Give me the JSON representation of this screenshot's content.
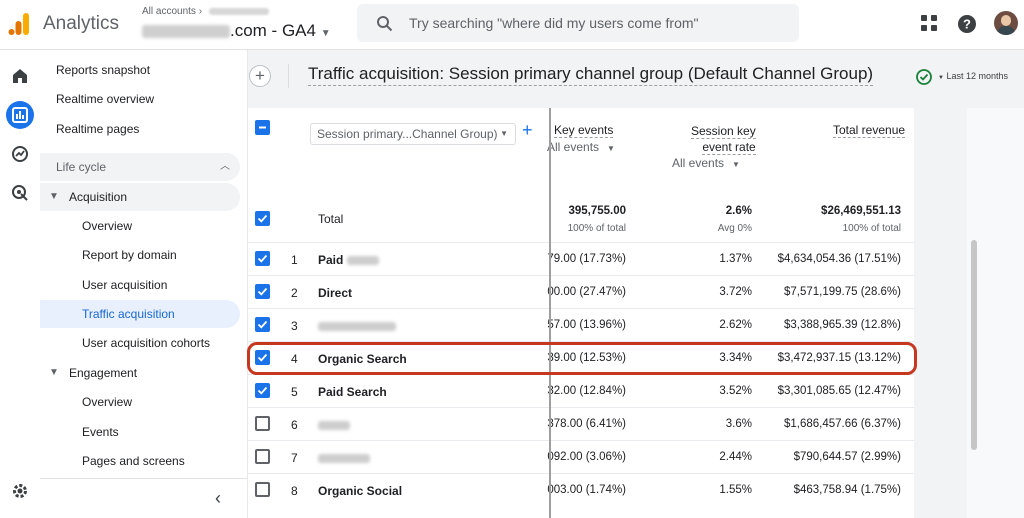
{
  "header": {
    "app_name": "Analytics",
    "breadcrumb": "All accounts",
    "account_suffix": ".com - GA4",
    "search_placeholder": "Try searching \"where did my users come from\""
  },
  "nav": {
    "items": [
      {
        "label": "Reports snapshot"
      },
      {
        "label": "Realtime overview"
      },
      {
        "label": "Realtime pages"
      },
      {
        "label": "Life cycle"
      },
      {
        "label": "Acquisition"
      },
      {
        "label": "Overview"
      },
      {
        "label": "Report by domain"
      },
      {
        "label": "User acquisition"
      },
      {
        "label": "Traffic acquisition"
      },
      {
        "label": "User acquisition cohorts"
      },
      {
        "label": "Engagement"
      },
      {
        "label": "Overview"
      },
      {
        "label": "Events"
      },
      {
        "label": "Pages and screens"
      }
    ]
  },
  "report": {
    "title": "Traffic acquisition: Session primary channel group (Default Channel Group)",
    "date_range": "Last 12 months",
    "dimension_select": "Session primary...Channel Group)",
    "columns": {
      "key_events": "Key events",
      "key_events_sub": "All events",
      "session_key_rate_1": "Session key",
      "session_key_rate_2": "event rate",
      "session_key_rate_sub": "All events",
      "total_revenue": "Total revenue"
    },
    "total": {
      "label": "Total",
      "key_events": "395,755.00",
      "key_events_sub": "100% of total",
      "rate": "2.6%",
      "rate_sub": "Avg 0%",
      "revenue": "$26,469,551.13",
      "revenue_sub": "100% of total"
    },
    "rows": [
      {
        "idx": "1",
        "channel": "Paid",
        "key_events": "79.00 (17.73%)",
        "rate": "1.37%",
        "revenue": "$4,634,054.36 (17.51%)",
        "checked": true
      },
      {
        "idx": "2",
        "channel": "Direct",
        "key_events": "00.00 (27.47%)",
        "rate": "3.72%",
        "revenue": "$7,571,199.75 (28.6%)",
        "checked": true
      },
      {
        "idx": "3",
        "channel": "",
        "key_events": "57.00 (13.96%)",
        "rate": "2.62%",
        "revenue": "$3,388,965.39 (12.8%)",
        "checked": true
      },
      {
        "idx": "4",
        "channel": "Organic Search",
        "key_events": "39.00 (12.53%)",
        "rate": "3.34%",
        "revenue": "$3,472,937.15 (13.12%)",
        "checked": true
      },
      {
        "idx": "5",
        "channel": "Paid Search",
        "key_events": "32.00 (12.84%)",
        "rate": "3.52%",
        "revenue": "$3,301,085.65 (12.47%)",
        "checked": true
      },
      {
        "idx": "6",
        "channel": "",
        "key_events": "378.00 (6.41%)",
        "rate": "3.6%",
        "revenue": "$1,686,457.66 (6.37%)",
        "checked": false
      },
      {
        "idx": "7",
        "channel": "",
        "key_events": "092.00 (3.06%)",
        "rate": "2.44%",
        "revenue": "$790,644.57 (2.99%)",
        "checked": false
      },
      {
        "idx": "8",
        "channel": "Organic Social",
        "key_events": "003.00 (1.74%)",
        "rate": "1.55%",
        "revenue": "$463,758.94 (1.75%)",
        "checked": false
      }
    ]
  },
  "colors": {
    "accent": "#1a73e8",
    "highlight": "#c5371f"
  }
}
